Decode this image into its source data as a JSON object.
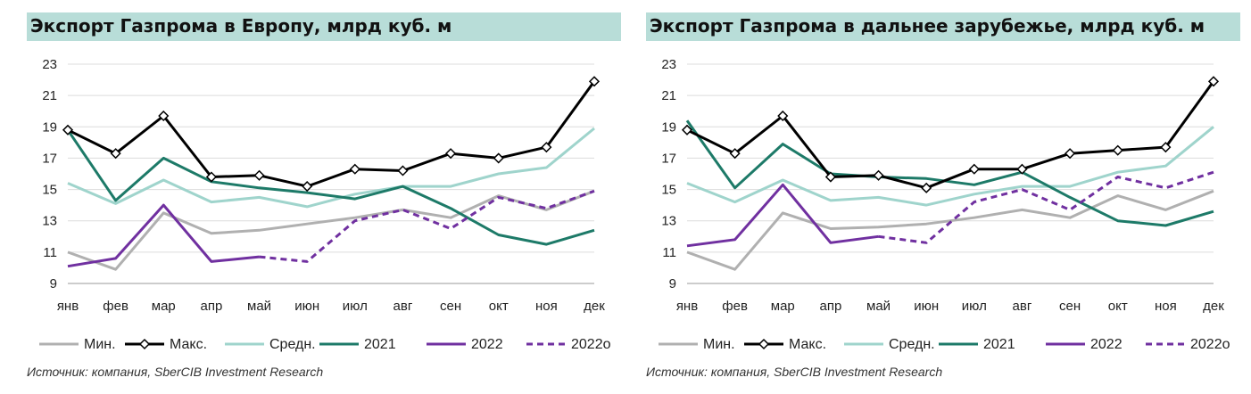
{
  "charts": [
    {
      "title": "Экспорт Газпрома в Европу, млрд куб. м",
      "source": "Источник: компания, SberCIB Investment Research"
    },
    {
      "title": "Экспорт Газпрома в дальнее зарубежье, млрд куб. м",
      "source": "Источник: компания, SberCIB Investment Research"
    }
  ],
  "chart_data": [
    {
      "type": "line",
      "title": "Экспорт Газпрома в Европу, млрд куб. м",
      "categories": [
        "янв",
        "фев",
        "мар",
        "апр",
        "май",
        "июн",
        "июл",
        "авг",
        "сен",
        "окт",
        "ноя",
        "дек"
      ],
      "ylim": [
        9,
        23
      ],
      "yticks": [
        9,
        11,
        13,
        15,
        17,
        19,
        21,
        23
      ],
      "grid": true,
      "legend": "bottom",
      "series": [
        {
          "name": "Мин.",
          "color": "#b0b0b0",
          "style": "solid",
          "marker": "none",
          "values": [
            11.0,
            9.9,
            13.5,
            12.2,
            12.4,
            12.8,
            13.2,
            13.7,
            13.2,
            14.6,
            13.7,
            14.9
          ]
        },
        {
          "name": "Макс.",
          "color": "#000000",
          "style": "solid",
          "marker": "diamond",
          "values": [
            18.8,
            17.3,
            19.7,
            15.8,
            15.9,
            15.2,
            16.3,
            16.2,
            17.3,
            17.0,
            17.7,
            21.9
          ]
        },
        {
          "name": "Средн.",
          "color": "#9fd4cc",
          "style": "solid",
          "marker": "none",
          "values": [
            15.4,
            14.1,
            15.6,
            14.2,
            14.5,
            13.9,
            14.7,
            15.2,
            15.2,
            16.0,
            16.4,
            18.9
          ]
        },
        {
          "name": "2021",
          "color": "#1d7a68",
          "style": "solid",
          "marker": "none",
          "values": [
            18.8,
            14.3,
            17.0,
            15.5,
            15.1,
            14.8,
            14.4,
            15.2,
            13.8,
            12.1,
            11.5,
            12.4
          ]
        },
        {
          "name": "2022",
          "color": "#7030a0",
          "style": "solid",
          "marker": "none",
          "values": [
            10.1,
            10.6,
            14.0,
            10.4,
            10.7,
            null,
            null,
            null,
            null,
            null,
            null,
            null
          ]
        },
        {
          "name": "2022o",
          "color": "#7030a0",
          "style": "dashed",
          "marker": "none",
          "values": [
            null,
            null,
            null,
            null,
            10.7,
            10.4,
            13.0,
            13.7,
            12.5,
            14.5,
            13.8,
            14.9
          ]
        }
      ]
    },
    {
      "type": "line",
      "title": "Экспорт Газпрома в дальнее зарубежье, млрд куб. м",
      "categories": [
        "янв",
        "фев",
        "мар",
        "апр",
        "май",
        "июн",
        "июл",
        "авг",
        "сен",
        "окт",
        "ноя",
        "дек"
      ],
      "ylim": [
        9,
        23
      ],
      "yticks": [
        9,
        11,
        13,
        15,
        17,
        19,
        21,
        23
      ],
      "grid": true,
      "legend": "bottom",
      "series": [
        {
          "name": "Мин.",
          "color": "#b0b0b0",
          "style": "solid",
          "marker": "none",
          "values": [
            11.0,
            9.9,
            13.5,
            12.5,
            12.6,
            12.8,
            13.2,
            13.7,
            13.2,
            14.6,
            13.7,
            14.9
          ]
        },
        {
          "name": "Макс.",
          "color": "#000000",
          "style": "solid",
          "marker": "diamond",
          "values": [
            18.8,
            17.3,
            19.7,
            15.8,
            15.9,
            15.1,
            16.3,
            16.3,
            17.3,
            17.5,
            17.7,
            21.9
          ]
        },
        {
          "name": "Средн.",
          "color": "#9fd4cc",
          "style": "solid",
          "marker": "none",
          "values": [
            15.4,
            14.2,
            15.6,
            14.3,
            14.5,
            14.0,
            14.7,
            15.2,
            15.2,
            16.1,
            16.5,
            19.0
          ]
        },
        {
          "name": "2021",
          "color": "#1d7a68",
          "style": "solid",
          "marker": "none",
          "values": [
            19.4,
            15.1,
            17.9,
            16.0,
            15.8,
            15.7,
            15.3,
            16.1,
            14.5,
            13.0,
            12.7,
            13.6
          ]
        },
        {
          "name": "2022",
          "color": "#7030a0",
          "style": "solid",
          "marker": "none",
          "values": [
            11.4,
            11.8,
            15.3,
            11.6,
            12.0,
            null,
            null,
            null,
            null,
            null,
            null,
            null
          ]
        },
        {
          "name": "2022o",
          "color": "#7030a0",
          "style": "dashed",
          "marker": "none",
          "values": [
            null,
            null,
            null,
            null,
            12.0,
            11.6,
            14.2,
            15.0,
            13.7,
            15.8,
            15.1,
            16.1
          ]
        }
      ]
    }
  ]
}
